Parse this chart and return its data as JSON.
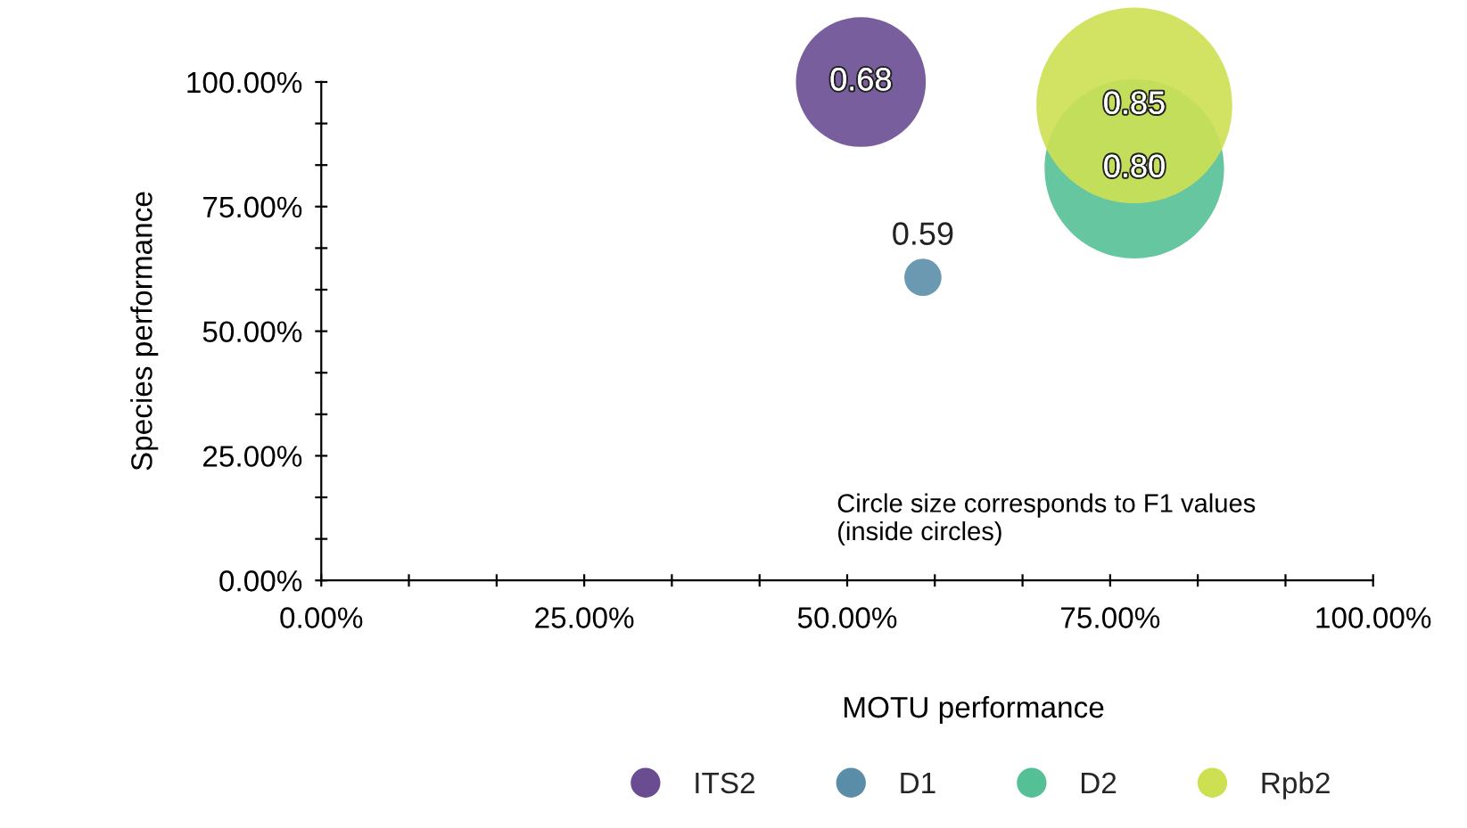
{
  "chart_data": {
    "type": "bubble",
    "xlabel": "MOTU performance",
    "ylabel": "Species performance",
    "xlim": [
      0,
      100
    ],
    "ylim": [
      0,
      100
    ],
    "xticks": [
      {
        "value": 0,
        "label": "0.00%"
      },
      {
        "value": 8.33,
        "label": null
      },
      {
        "value": 16.67,
        "label": null
      },
      {
        "value": 25,
        "label": "25.00%"
      },
      {
        "value": 33.33,
        "label": null
      },
      {
        "value": 41.67,
        "label": null
      },
      {
        "value": 50,
        "label": "50.00%"
      },
      {
        "value": 58.33,
        "label": null
      },
      {
        "value": 66.67,
        "label": null
      },
      {
        "value": 75,
        "label": "75.00%"
      },
      {
        "value": 83.33,
        "label": null
      },
      {
        "value": 91.67,
        "label": null
      },
      {
        "value": 100,
        "label": "100.00%"
      }
    ],
    "yticks": [
      {
        "value": 0,
        "label": "0.00%"
      },
      {
        "value": 8.33,
        "label": null
      },
      {
        "value": 16.67,
        "label": null
      },
      {
        "value": 25,
        "label": "25.00%"
      },
      {
        "value": 33.33,
        "label": null
      },
      {
        "value": 41.67,
        "label": null
      },
      {
        "value": 50,
        "label": "50.00%"
      },
      {
        "value": 58.33,
        "label": null
      },
      {
        "value": 66.67,
        "label": null
      },
      {
        "value": 75,
        "label": "75.00%"
      },
      {
        "value": 83.33,
        "label": null
      },
      {
        "value": 91.67,
        "label": null
      },
      {
        "value": 100,
        "label": "100.00%"
      }
    ],
    "series": [
      {
        "name": "ITS2",
        "color": "#6a4c93",
        "x": [
          51.3
        ],
        "values": [
          100
        ],
        "sizes": [
          0.44
        ]
      },
      {
        "name": "D1",
        "color": "#5a8ea8",
        "x": [
          57.2
        ],
        "values": [
          60.8
        ],
        "sizes": [
          0.036
        ]
      },
      {
        "name": "D2",
        "color": "#55c095",
        "x": [
          77.3
        ],
        "values": [
          82.6
        ],
        "sizes": [
          0.84
        ]
      },
      {
        "name": "Rpb2",
        "color": "#cde052",
        "x": [
          77.3
        ],
        "values": [
          95.3
        ],
        "sizes": [
          1
        ]
      }
    ],
    "annotations": [
      "Circle size corresponds to F1 values\n(inside circles)",
      {
        "text": "0.68",
        "x": 51.3,
        "y": 100
      },
      {
        "text": "0.59",
        "x": 57.2,
        "y": 60.8
      },
      {
        "text": "0.80",
        "x": 77.3,
        "y": 82.6
      },
      {
        "text": "0.85",
        "x": 77.3,
        "y": 95.3
      }
    ],
    "legend": "bottom",
    "marker": "circle",
    "grid": false
  }
}
